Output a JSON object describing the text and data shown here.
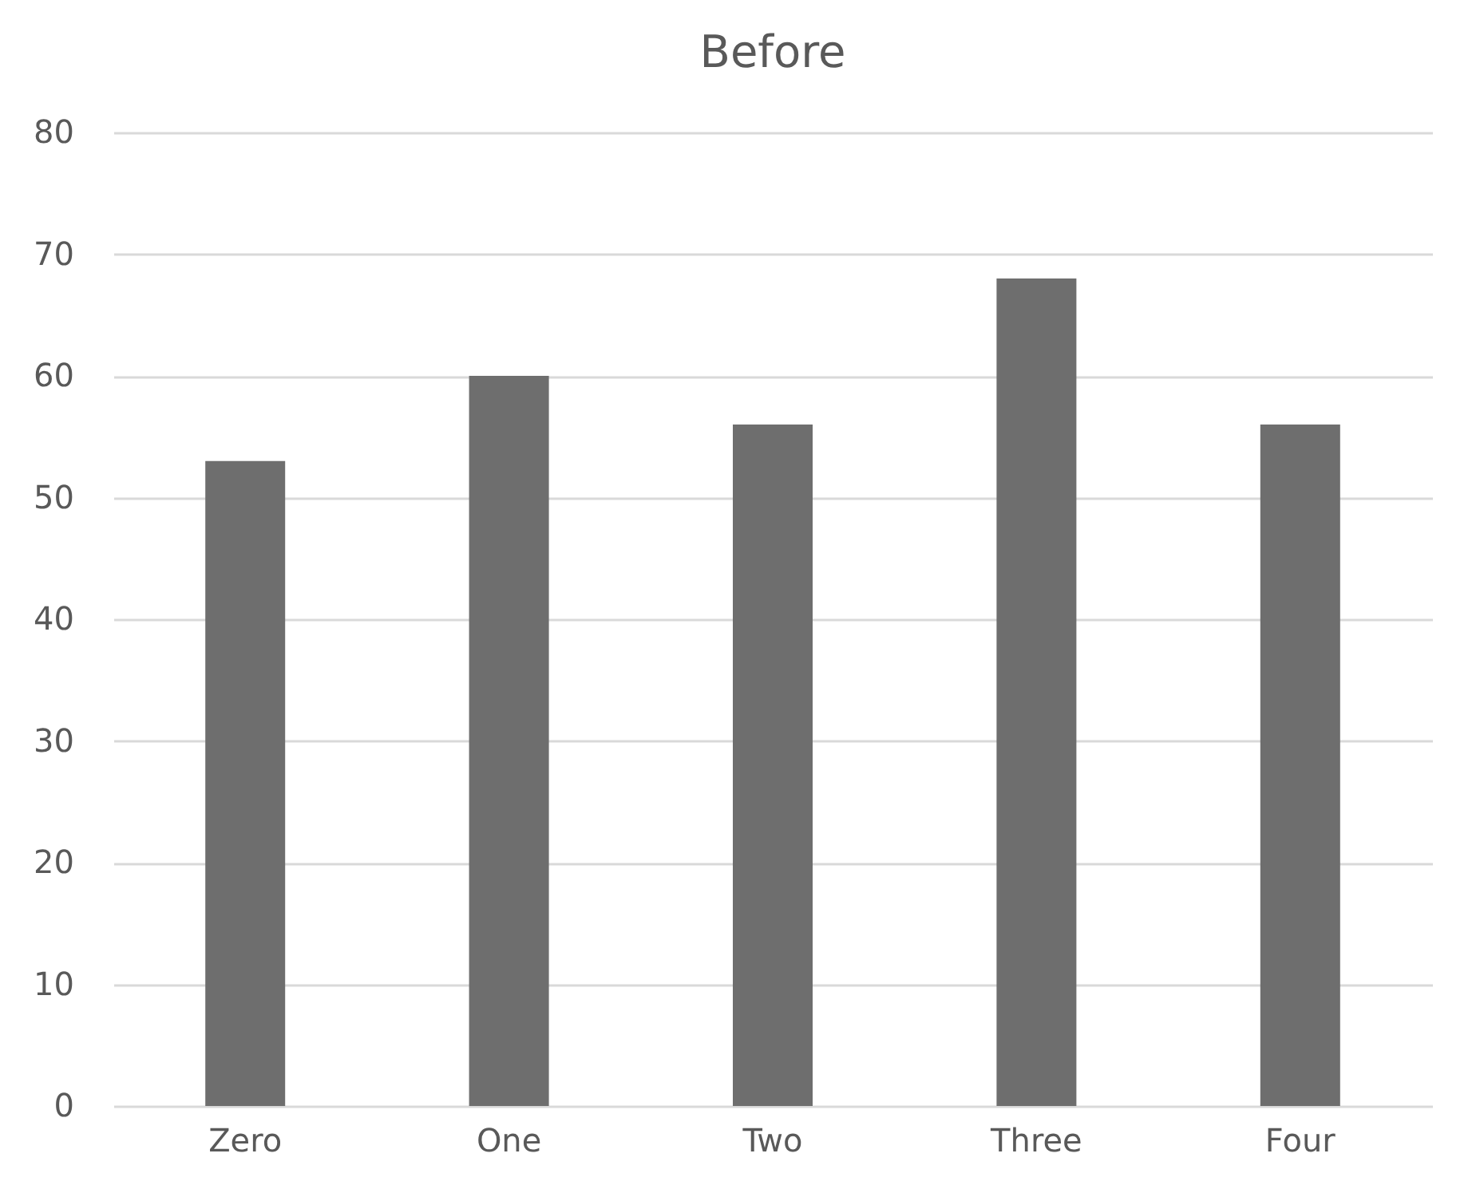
{
  "chart_data": {
    "type": "bar",
    "title": "Before",
    "categories": [
      "Zero",
      "One",
      "Two",
      "Three",
      "Four"
    ],
    "values": [
      53,
      60,
      56,
      68,
      56
    ],
    "color": "#6e6e6e",
    "ylim": [
      0,
      80
    ],
    "yticks": [
      0,
      10,
      20,
      30,
      40,
      50,
      60,
      70,
      80
    ],
    "grid": "y"
  }
}
